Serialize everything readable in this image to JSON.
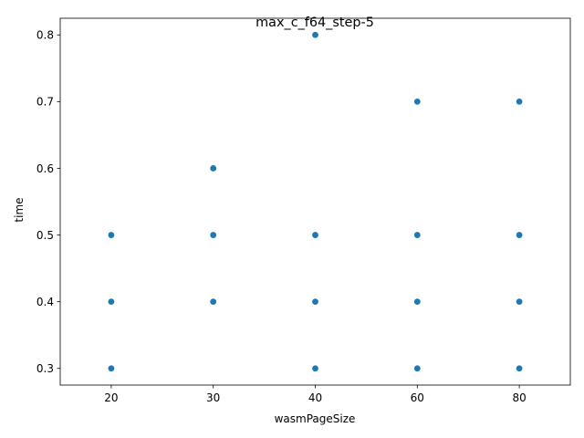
{
  "chart_data": {
    "type": "scatter",
    "title": "max_c_f64_step-5",
    "xlabel": "wasmPageSize",
    "ylabel": "time",
    "x_ticks": [
      "20",
      "30",
      "40",
      "60",
      "80"
    ],
    "y_ticks": [
      0.3,
      0.4,
      0.5,
      0.6,
      0.7,
      0.8
    ],
    "y_tick_labels": [
      "0.3",
      "0.4",
      "0.5",
      "0.6",
      "0.7",
      "0.8"
    ],
    "ylim": [
      0.275,
      0.825
    ],
    "grid": false,
    "marker_color": "#1f77b4",
    "points": [
      {
        "x": "20",
        "y": 0.3
      },
      {
        "x": "20",
        "y": 0.4
      },
      {
        "x": "20",
        "y": 0.5
      },
      {
        "x": "30",
        "y": 0.4
      },
      {
        "x": "30",
        "y": 0.5
      },
      {
        "x": "30",
        "y": 0.6
      },
      {
        "x": "40",
        "y": 0.3
      },
      {
        "x": "40",
        "y": 0.4
      },
      {
        "x": "40",
        "y": 0.5
      },
      {
        "x": "40",
        "y": 0.8
      },
      {
        "x": "60",
        "y": 0.3
      },
      {
        "x": "60",
        "y": 0.4
      },
      {
        "x": "60",
        "y": 0.5
      },
      {
        "x": "60",
        "y": 0.7
      },
      {
        "x": "80",
        "y": 0.3
      },
      {
        "x": "80",
        "y": 0.4
      },
      {
        "x": "80",
        "y": 0.5
      },
      {
        "x": "80",
        "y": 0.7
      }
    ]
  }
}
